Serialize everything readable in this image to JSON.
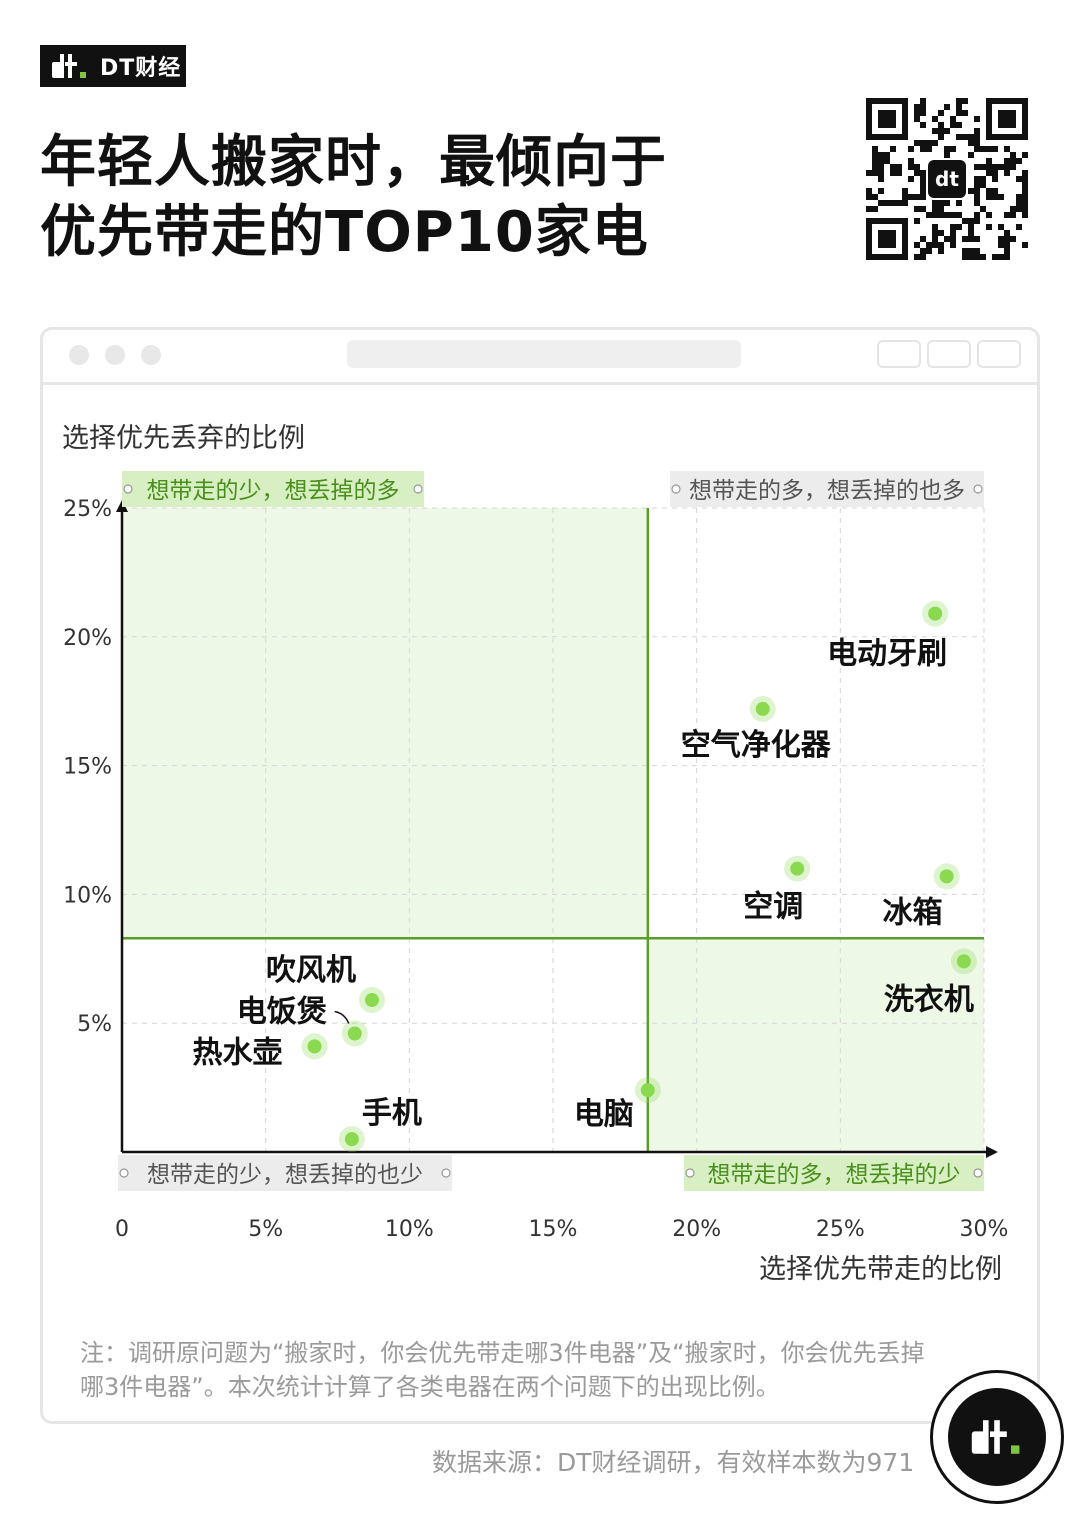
{
  "brand": {
    "name": "DT财经"
  },
  "title": {
    "line1": "年轻人搬家时，最倾向于",
    "line2": "优先带走的TOP10家电"
  },
  "icons": [
    "dt-logo-icon",
    "qr-code-icon",
    "window-close-icon",
    "window-minimize-icon",
    "window-max-icon",
    "record-icon",
    "share-icon",
    "copy-icon"
  ],
  "colors": {
    "accent": "#7cc73f",
    "quadrant_fill": "#eef8e6",
    "label_fill": "#d7efc2",
    "gray_label_fill": "#ececec",
    "point": "#8ad94e",
    "line": "#5a9e2a"
  },
  "chart_data": {
    "type": "scatter",
    "xlabel": "选择优先带走的比例",
    "ylabel": "选择优先丢弃的比例",
    "xlim": [
      0,
      30
    ],
    "ylim": [
      0,
      25
    ],
    "x_ticks": [
      "0",
      "5%",
      "10%",
      "15%",
      "20%",
      "25%",
      "30%"
    ],
    "y_ticks": [
      "5%",
      "10%",
      "15%",
      "20%",
      "25%"
    ],
    "x_tick_values": [
      0,
      5,
      10,
      15,
      20,
      25,
      30
    ],
    "y_tick_values": [
      5,
      10,
      15,
      20,
      25
    ],
    "divider": {
      "x": 18.3,
      "y": 8.3
    },
    "grid": true,
    "quadrants": {
      "top_left": "想带走的少，想丢掉的多",
      "top_right": "想带走的多，想丢掉的也多",
      "bottom_left": "想带走的少，想丢掉的也少",
      "bottom_right": "想带走的多，想丢掉的少"
    },
    "points": [
      {
        "label": "电动牙刷",
        "x": 28.3,
        "y": 20.9
      },
      {
        "label": "空气净化器",
        "x": 22.3,
        "y": 17.2
      },
      {
        "label": "空调",
        "x": 23.5,
        "y": 11.0
      },
      {
        "label": "冰箱",
        "x": 28.7,
        "y": 10.7
      },
      {
        "label": "洗衣机",
        "x": 29.3,
        "y": 7.4
      },
      {
        "label": "吹风机",
        "x": 8.7,
        "y": 5.9
      },
      {
        "label": "电饭煲",
        "x": 8.1,
        "y": 4.6
      },
      {
        "label": "热水壶",
        "x": 6.7,
        "y": 4.1
      },
      {
        "label": "手机",
        "x": 8.0,
        "y": 0.5
      },
      {
        "label": "电脑",
        "x": 18.3,
        "y": 2.4
      }
    ]
  },
  "note": "注：调研原问题为“搬家时，你会优先带走哪3件电器”及“搬家时，你会优先丢掉哪3件电器”。本次统计计算了各类电器在两个问题下的出现比例。",
  "source": "数据来源：DT财经调研，有效样本数为971"
}
